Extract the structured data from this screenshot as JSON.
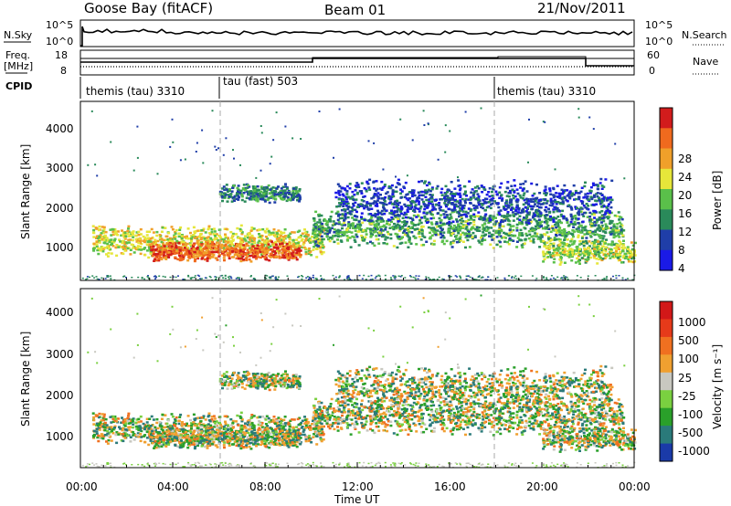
{
  "header": {
    "station": "Goose Bay (fitACF)",
    "beam": "Beam 01",
    "date": "21/Nov/2011"
  },
  "panels": {
    "nsky_label": "N.Sky",
    "nsearch_label": "N.Search",
    "nsky_ticks": [
      "10^5",
      "10^0"
    ],
    "freq_label_1": "Freq.",
    "freq_label_2": "[MHz]",
    "nave_label": "Nave",
    "freq_ticks": [
      "18",
      "8"
    ],
    "nave_ticks": [
      "60",
      "0"
    ],
    "cpid_label": "CPID",
    "cpid_segments": [
      {
        "label": "themis (tau) 3310",
        "start_hour": 0
      },
      {
        "label": "tau (fast) 503",
        "start_hour": 6
      },
      {
        "label": "themis (tau) 3310",
        "start_hour": 18
      }
    ]
  },
  "axes": {
    "ylabel": "Slant Range [km]",
    "xlabel": "Time UT",
    "y_ticks": [
      "1000",
      "2000",
      "3000",
      "4000"
    ],
    "x_ticks": [
      "00:00",
      "04:00",
      "08:00",
      "12:00",
      "16:00",
      "20:00",
      "00:00"
    ]
  },
  "chart_data": [
    {
      "type": "heatmap",
      "title": "",
      "xlabel": "Time UT",
      "ylabel": "Slant Range [km]",
      "xlim": [
        0,
        24
      ],
      "ylim": [
        180,
        4500
      ],
      "colorbar_label": "Power [dB]",
      "colorbar_ticks": [
        4,
        8,
        12,
        16,
        20,
        24,
        28
      ],
      "colorbar_colors": [
        "#1a1ae6",
        "#1f3ea8",
        "#2a8a5a",
        "#5ac04a",
        "#e6e63a",
        "#f0a02a",
        "#f06a1e",
        "#d21c1c"
      ]
    },
    {
      "type": "heatmap",
      "title": "",
      "xlabel": "Time UT",
      "ylabel": "Slant Range [km]",
      "xlim": [
        0,
        24
      ],
      "ylim": [
        180,
        4500
      ],
      "colorbar_label": "Velocity [m s^-1]",
      "colorbar_ticks": [
        1000,
        500,
        100,
        25,
        -25,
        -100,
        -500,
        -1000
      ],
      "colorbar_colors": [
        "#1a3aa8",
        "#2a7a7a",
        "#2aa02a",
        "#7ad040",
        "#c8c8c0",
        "#f0a030",
        "#f07020",
        "#e63a1a",
        "#d21818"
      ]
    }
  ],
  "colorbars": {
    "power_label": "Power [dB]",
    "power_ticks": [
      "28",
      "24",
      "20",
      "16",
      "12",
      "8",
      "4"
    ],
    "velocity_label": "Velocity [m s⁻¹]",
    "velocity_ticks": [
      "1000",
      "500",
      "100",
      "25",
      "-25",
      "-100",
      "-500",
      "-1000"
    ]
  }
}
